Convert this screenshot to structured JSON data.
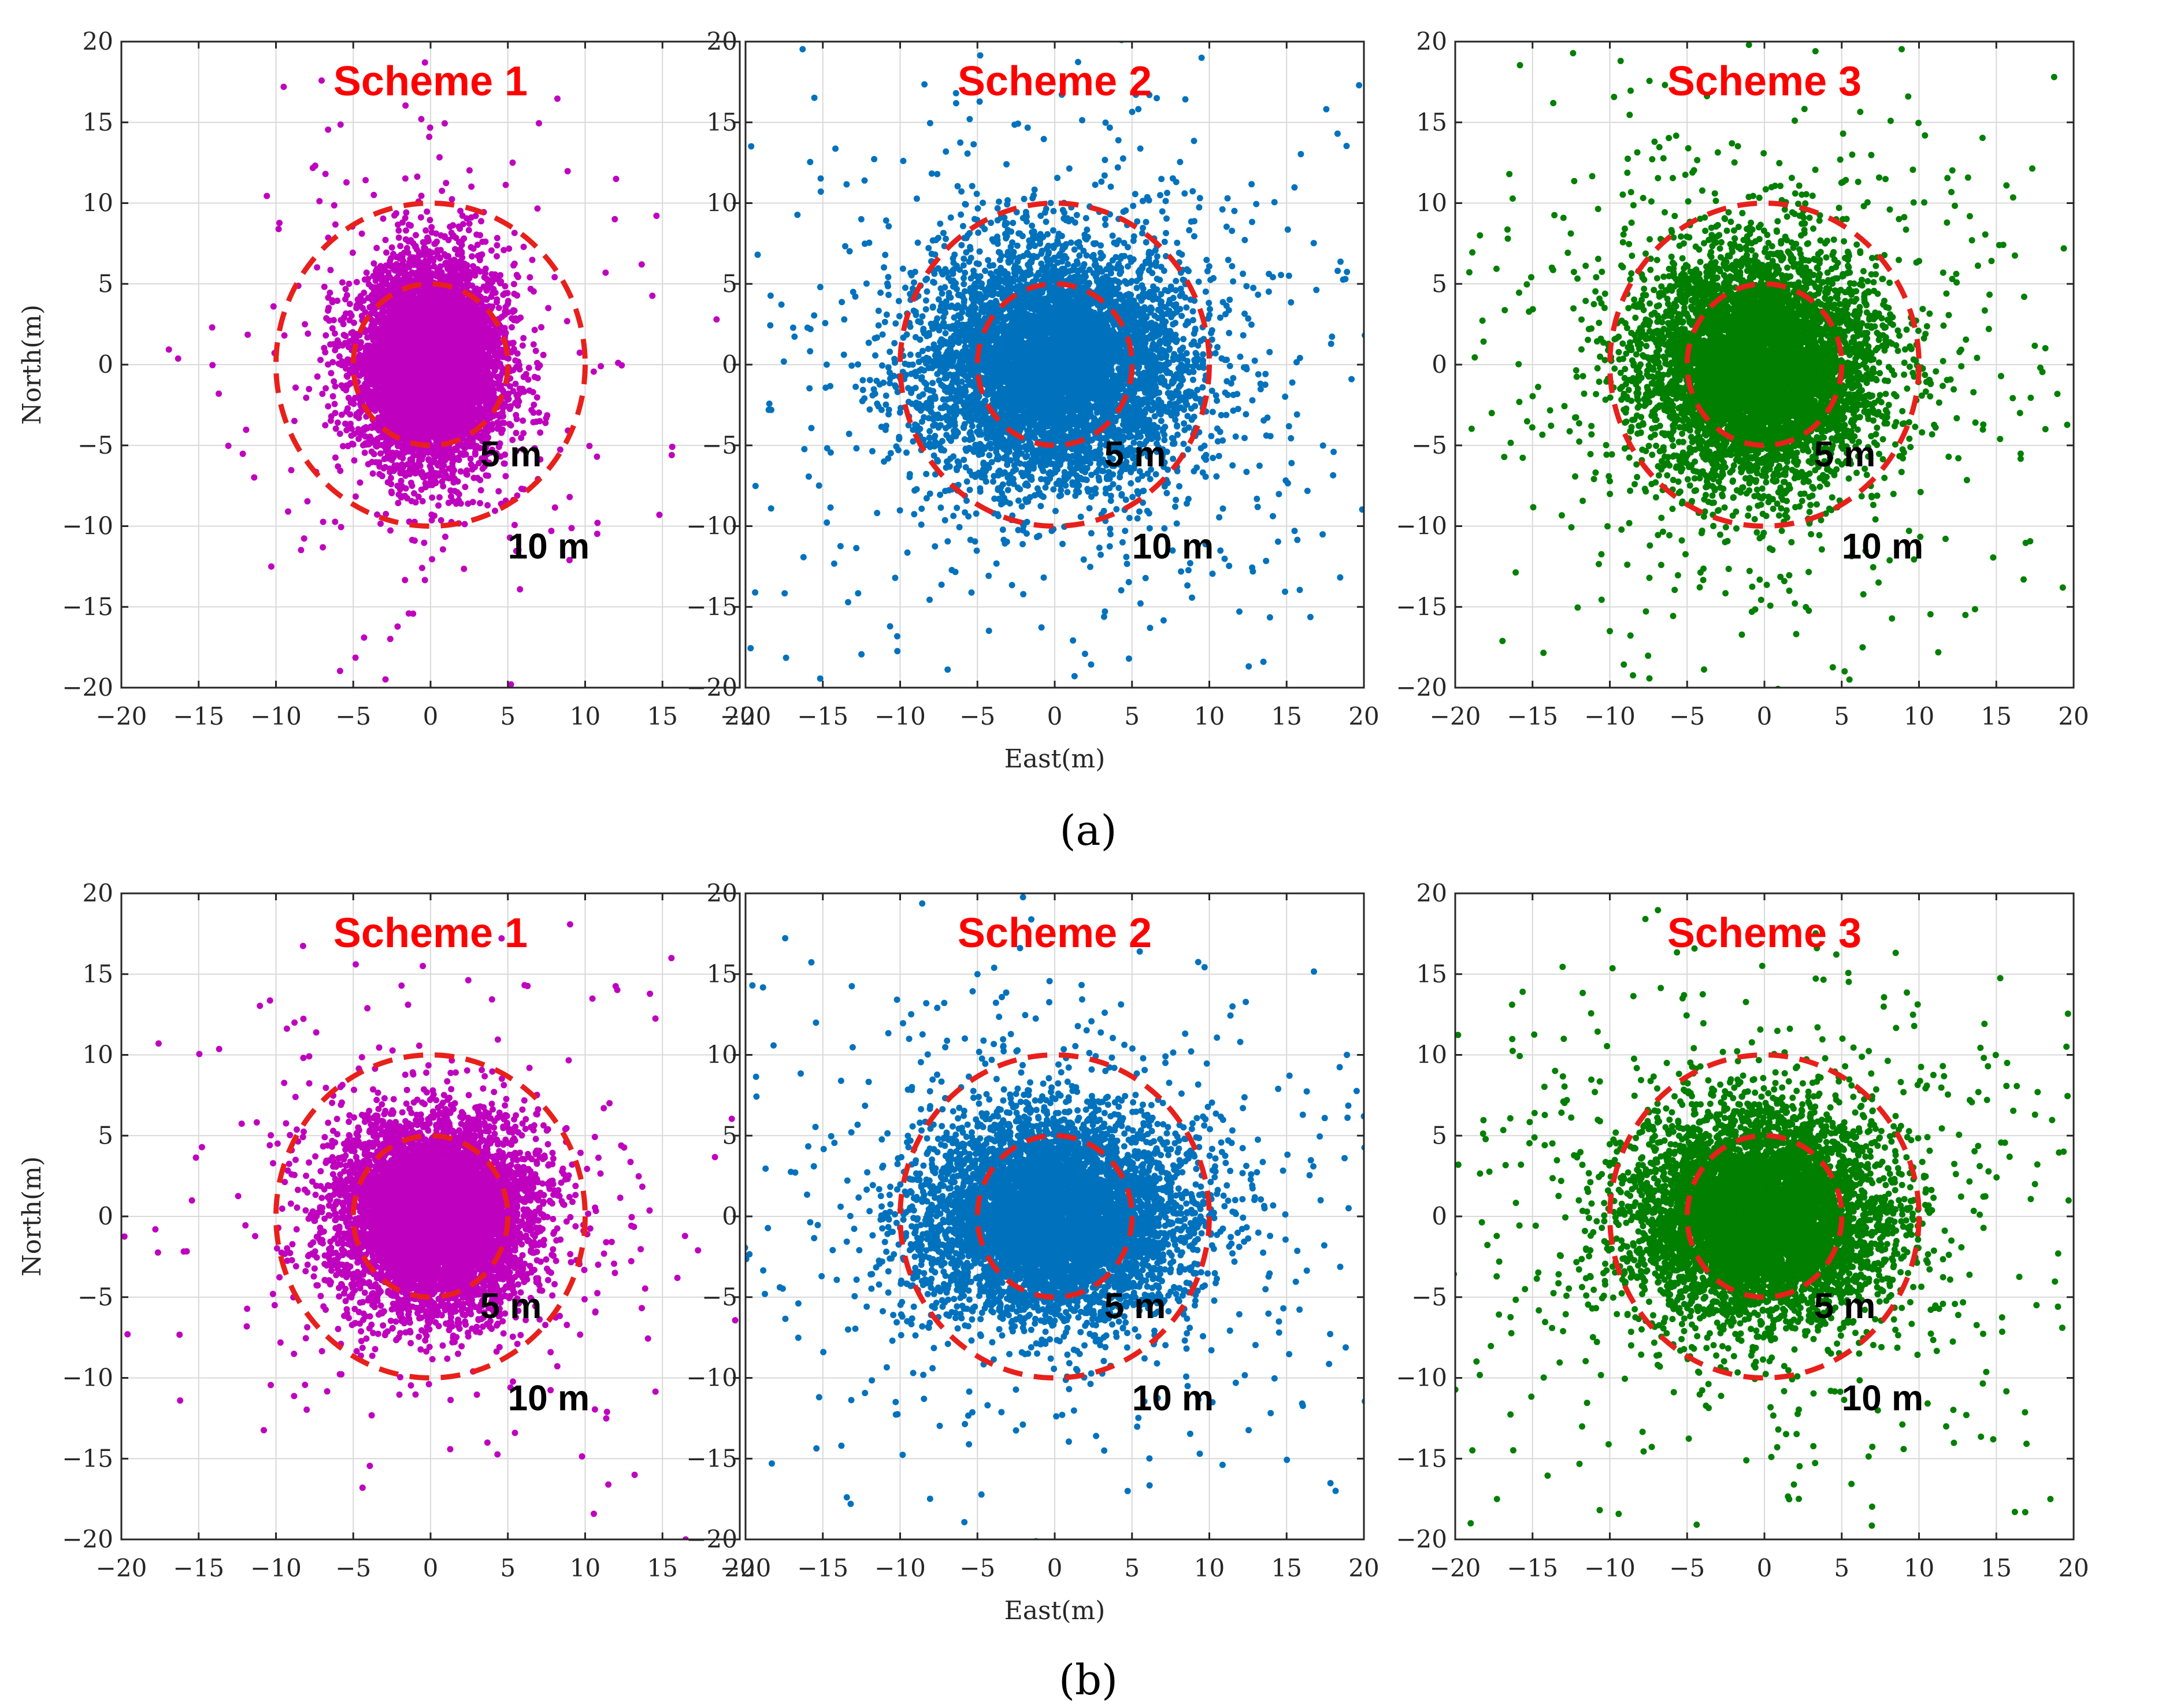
{
  "figure": {
    "panel_labels": [
      "(a)",
      "(b)"
    ]
  },
  "colors": {
    "scheme1": "#bf00bf",
    "scheme2": "#0072bd",
    "scheme3": "#007f00",
    "circle": "#e8201c",
    "title": "#ff0000",
    "grid": "#d9d9d9",
    "axis": "#262626"
  },
  "chart_data": [
    {
      "id": "a1",
      "type": "scatter",
      "row": "a",
      "col": 0,
      "title": "Scheme 1",
      "xlabel": "",
      "ylabel": "North(m)",
      "xlim": [
        -20,
        20
      ],
      "ylim": [
        -20,
        20
      ],
      "xticks": [
        -20,
        -15,
        -10,
        -5,
        0,
        5,
        10,
        15,
        20
      ],
      "yticks": [
        -20,
        -15,
        -10,
        -5,
        0,
        5,
        10,
        15,
        20
      ],
      "grid": true,
      "color_key": "scheme1",
      "circles": [
        {
          "center": [
            0,
            0
          ],
          "radius": 5,
          "label": "5 m"
        },
        {
          "center": [
            0,
            0
          ],
          "radius": 10,
          "label": "10 m"
        }
      ],
      "distribution": {
        "count": 6500,
        "mean": [
          0,
          0
        ],
        "sigma": [
          2.3,
          3.1
        ],
        "heavy_tail": 0.05
      },
      "outliers": [
        [
          18.5,
          2.8
        ],
        [
          15.6,
          -5.6
        ],
        [
          12,
          11.5
        ],
        [
          14.8,
          -9.3
        ],
        [
          10.8,
          -9.8
        ],
        [
          -13.7,
          -1.8
        ],
        [
          -10.3,
          -12.5
        ],
        [
          -4.3,
          -16.9
        ],
        [
          5.2,
          -19.8
        ],
        [
          -9.5,
          17.2
        ]
      ]
    },
    {
      "id": "a2",
      "type": "scatter",
      "row": "a",
      "col": 1,
      "title": "Scheme 2",
      "xlabel": "East(m)",
      "ylabel": "",
      "xlim": [
        -20,
        20
      ],
      "ylim": [
        -20,
        20
      ],
      "xticks": [
        -20,
        -15,
        -10,
        -5,
        0,
        5,
        10,
        15,
        20
      ],
      "yticks": [
        -20,
        -15,
        -10,
        -5,
        0,
        5,
        10,
        15,
        20
      ],
      "grid": true,
      "color_key": "scheme2",
      "circles": [
        {
          "center": [
            0,
            0
          ],
          "radius": 5,
          "label": "5 m"
        },
        {
          "center": [
            0,
            0
          ],
          "radius": 10,
          "label": "10 m"
        }
      ],
      "distribution": {
        "count": 6500,
        "mean": [
          0,
          0
        ],
        "sigma": [
          4.2,
          3.6
        ],
        "heavy_tail": 0.1
      },
      "outliers": [
        [
          9.5,
          19
        ],
        [
          -5.5,
          15.2
        ],
        [
          6.6,
          16.5
        ],
        [
          13.5,
          -18.4
        ],
        [
          18.8,
          5.3
        ],
        [
          -18.5,
          -2.8
        ],
        [
          -15.8,
          2.2
        ],
        [
          4.8,
          -18.2
        ],
        [
          -12.3,
          11.4
        ],
        [
          19.2,
          -0.9
        ]
      ]
    },
    {
      "id": "a3",
      "type": "scatter",
      "row": "a",
      "col": 2,
      "title": "Scheme 3",
      "xlabel": "",
      "ylabel": "",
      "xlim": [
        -20,
        20
      ],
      "ylim": [
        -20,
        20
      ],
      "xticks": [
        -20,
        -15,
        -10,
        -5,
        0,
        5,
        10,
        15,
        20
      ],
      "yticks": [
        -20,
        -15,
        -10,
        -5,
        0,
        5,
        10,
        15,
        20
      ],
      "grid": true,
      "color_key": "scheme3",
      "circles": [
        {
          "center": [
            0,
            0
          ],
          "radius": 5,
          "label": "5 m"
        },
        {
          "center": [
            0,
            0
          ],
          "radius": 10,
          "label": "10 m"
        }
      ],
      "distribution": {
        "count": 6500,
        "mean": [
          -0.5,
          0
        ],
        "sigma": [
          3.6,
          3.4
        ],
        "heavy_tail": 0.12
      },
      "outliers": [
        [
          -9.3,
          18.8
        ],
        [
          -1,
          19.8
        ],
        [
          5.5,
          -19.5
        ],
        [
          19.3,
          -13.8
        ],
        [
          16.8,
          4.2
        ],
        [
          -18.4,
          8
        ],
        [
          -10,
          -16.5
        ],
        [
          9.3,
          16.6
        ],
        [
          -16.5,
          11.8
        ],
        [
          13,
          -15.5
        ]
      ]
    },
    {
      "id": "b1",
      "type": "scatter",
      "row": "b",
      "col": 0,
      "title": "Scheme 1",
      "xlabel": "",
      "ylabel": "North(m)",
      "xlim": [
        -20,
        20
      ],
      "ylim": [
        -20,
        20
      ],
      "xticks": [
        -20,
        -15,
        -10,
        -5,
        0,
        5,
        10,
        15,
        20
      ],
      "yticks": [
        -20,
        -15,
        -10,
        -5,
        0,
        5,
        10,
        15,
        20
      ],
      "grid": true,
      "color_key": "scheme1",
      "circles": [
        {
          "center": [
            0,
            0
          ],
          "radius": 5,
          "label": "5 m"
        },
        {
          "center": [
            0,
            0
          ],
          "radius": 10,
          "label": "10 m"
        }
      ],
      "distribution": {
        "count": 6500,
        "mean": [
          0.3,
          0
        ],
        "sigma": [
          3.2,
          2.9
        ],
        "heavy_tail": 0.06
      },
      "outliers": [
        [
          -19.6,
          -7.3
        ],
        [
          -16.2,
          -11.4
        ],
        [
          16.5,
          -20
        ],
        [
          13.2,
          -16
        ],
        [
          17.3,
          -2.1
        ],
        [
          -4.4,
          -16.8
        ],
        [
          -0.5,
          15.5
        ],
        [
          -8.8,
          12
        ],
        [
          11.5,
          -16.6
        ],
        [
          -17.8,
          -0.8
        ]
      ]
    },
    {
      "id": "b2",
      "type": "scatter",
      "row": "b",
      "col": 1,
      "title": "Scheme 2",
      "xlabel": "East(m)",
      "ylabel": "",
      "xlim": [
        -20,
        20
      ],
      "ylim": [
        -20,
        20
      ],
      "xticks": [
        -20,
        -15,
        -10,
        -5,
        0,
        5,
        10,
        15,
        20
      ],
      "yticks": [
        -20,
        -15,
        -10,
        -5,
        0,
        5,
        10,
        15,
        20
      ],
      "grid": true,
      "color_key": "scheme2",
      "circles": [
        {
          "center": [
            0,
            0
          ],
          "radius": 5,
          "label": "5 m"
        },
        {
          "center": [
            0,
            0
          ],
          "radius": 10,
          "label": "10 m"
        }
      ],
      "distribution": {
        "count": 6500,
        "mean": [
          0,
          0
        ],
        "sigma": [
          4.1,
          3.0
        ],
        "heavy_tail": 0.1
      },
      "outliers": [
        [
          5.5,
          16.4
        ],
        [
          -13.2,
          -17.8
        ],
        [
          -18.3,
          -15.3
        ],
        [
          18.9,
          10
        ],
        [
          11.5,
          13
        ],
        [
          20,
          6.2
        ],
        [
          3.2,
          -14.5
        ],
        [
          -13.8,
          -14.2
        ],
        [
          12,
          10.8
        ],
        [
          17.2,
          1
        ]
      ]
    },
    {
      "id": "b3",
      "type": "scatter",
      "row": "b",
      "col": 2,
      "title": "Scheme 3",
      "xlabel": "",
      "ylabel": "",
      "xlim": [
        -20,
        20
      ],
      "ylim": [
        -20,
        20
      ],
      "xticks": [
        -20,
        -15,
        -10,
        -5,
        0,
        5,
        10,
        15,
        20
      ],
      "yticks": [
        -20,
        -15,
        -10,
        -5,
        0,
        5,
        10,
        15,
        20
      ],
      "grid": true,
      "color_key": "scheme3",
      "circles": [
        {
          "center": [
            0,
            0
          ],
          "radius": 5,
          "label": "5 m"
        },
        {
          "center": [
            0,
            0
          ],
          "radius": 10,
          "label": "10 m"
        }
      ],
      "distribution": {
        "count": 6500,
        "mean": [
          -0.3,
          0
        ],
        "sigma": [
          4.0,
          3.1
        ],
        "heavy_tail": 0.12
      },
      "outliers": [
        [
          -19,
          -19
        ],
        [
          -17.3,
          -17.5
        ],
        [
          18.5,
          -17.5
        ],
        [
          15.7,
          9.5
        ],
        [
          -5.2,
          13.7
        ],
        [
          17.5,
          2
        ],
        [
          19,
          -2.3
        ],
        [
          16.2,
          -18.3
        ],
        [
          -19.8,
          3.2
        ],
        [
          14.8,
          -13.8
        ]
      ]
    }
  ]
}
